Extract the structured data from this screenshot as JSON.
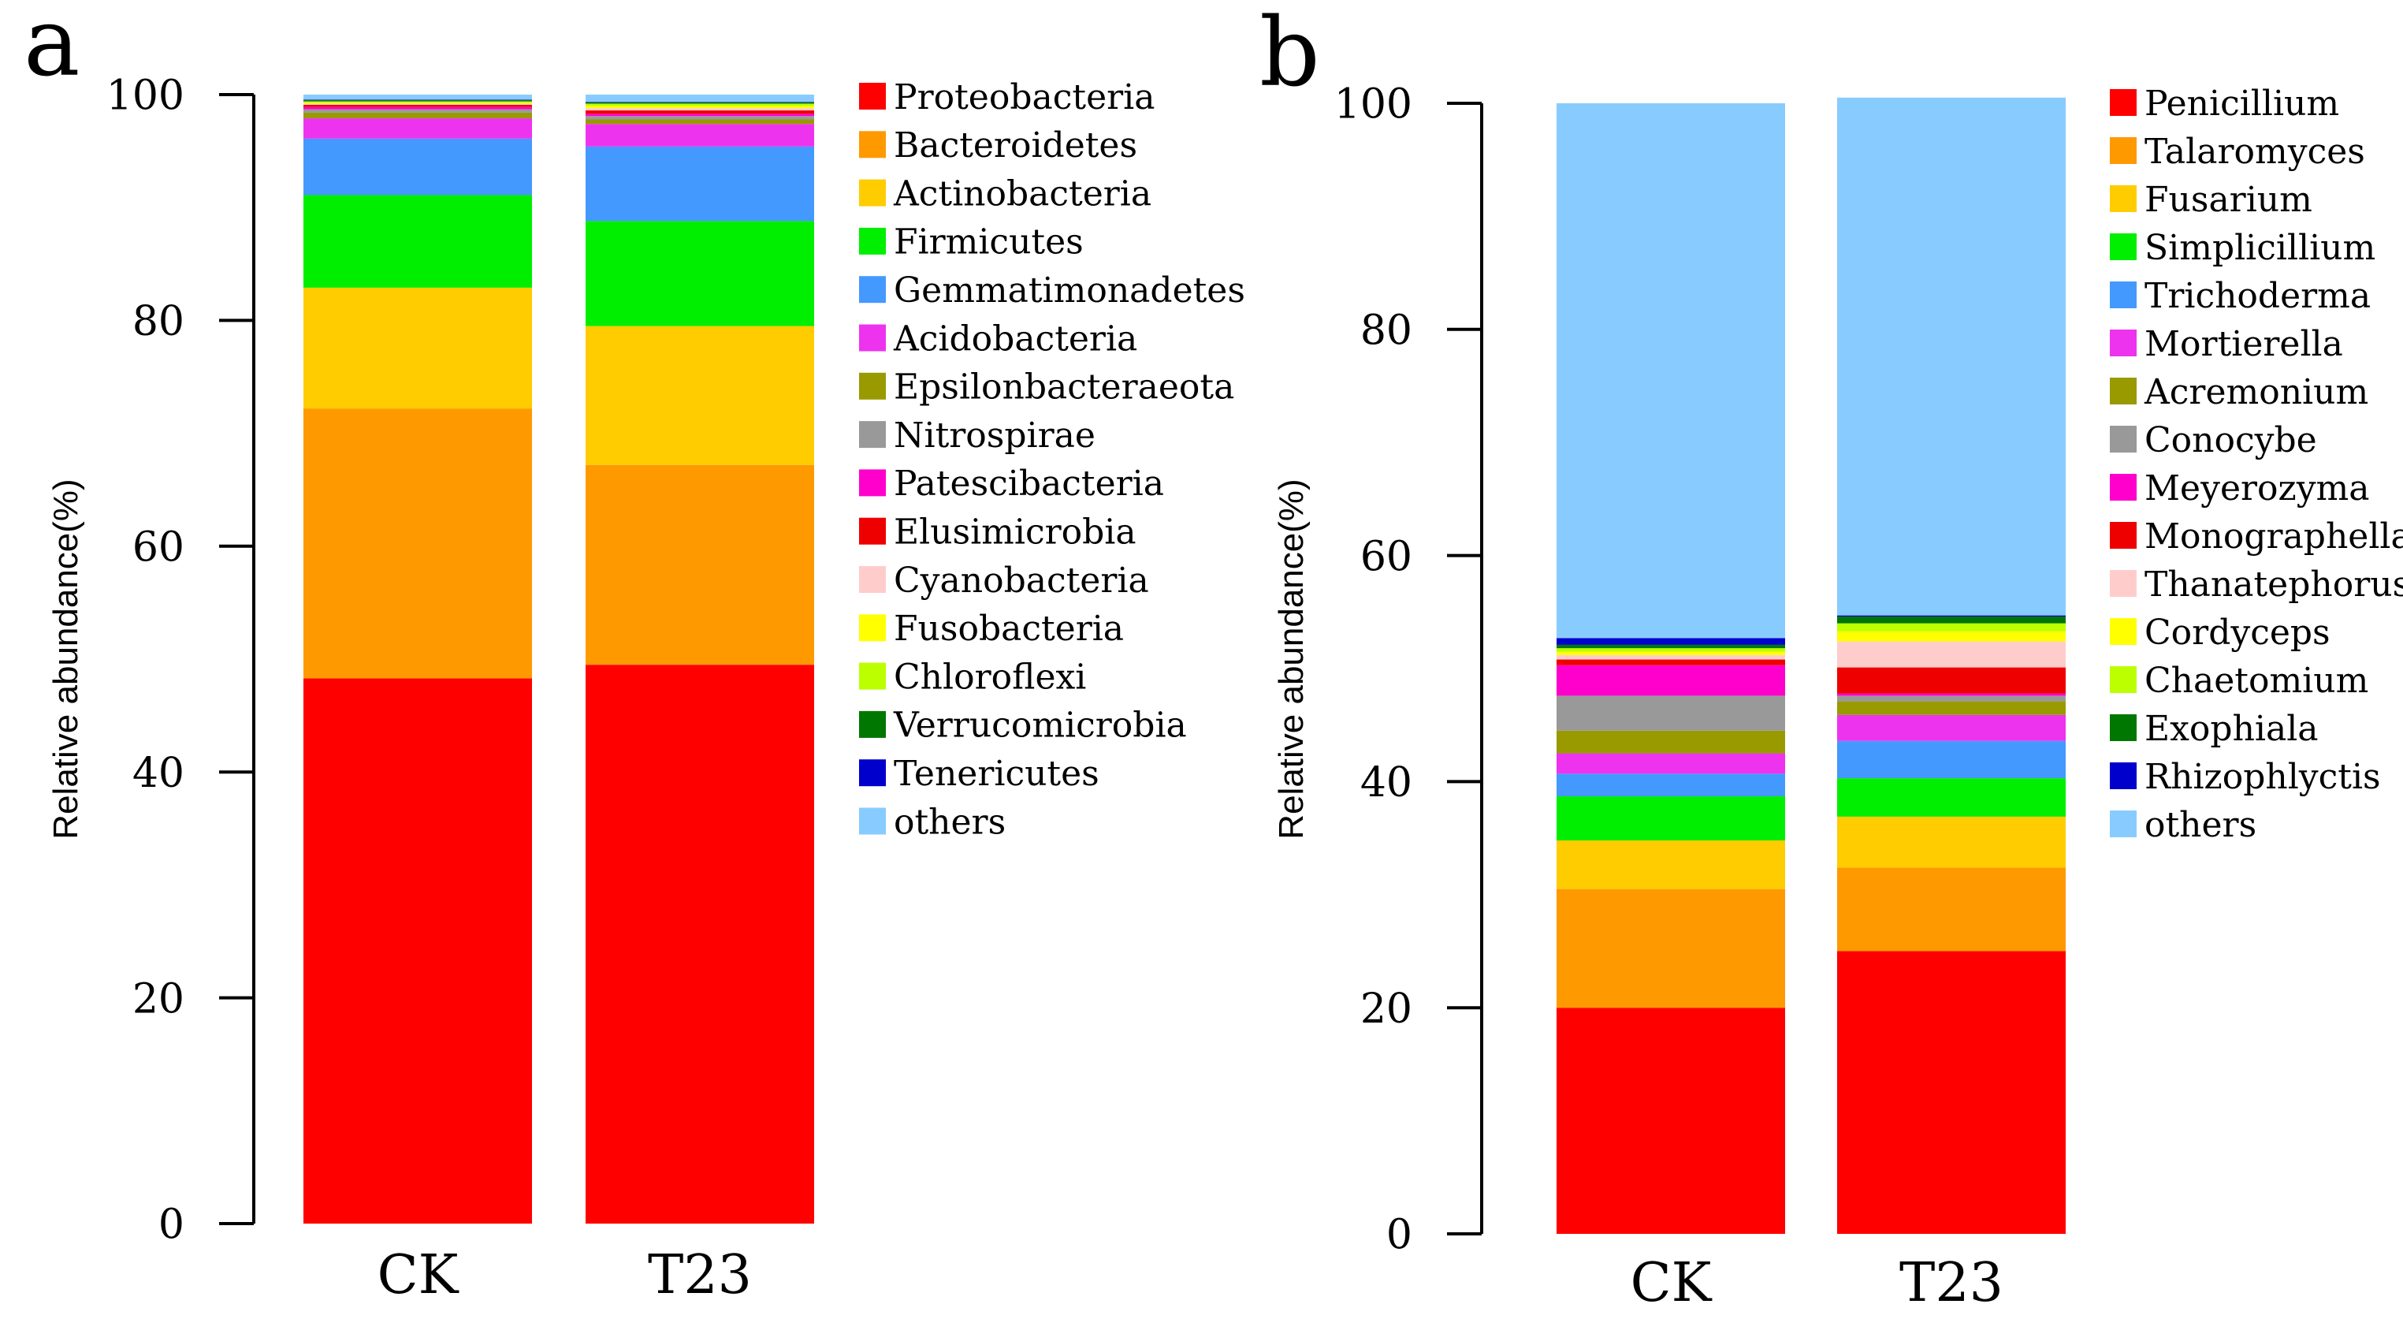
{
  "chart_data": [
    {
      "panel_label": "a",
      "type": "bar",
      "stacked": true,
      "ylabel": "Relative abundance(%)",
      "ylim": [
        0,
        100
      ],
      "yticks": [
        "0",
        "20",
        "40",
        "60",
        "80",
        "100"
      ],
      "categories": [
        "CK",
        "T23"
      ],
      "series": [
        {
          "name": "Proteobacteria",
          "color": "#ff0000",
          "values": [
            48.3,
            49.5
          ]
        },
        {
          "name": "Bacteroidetes",
          "color": "#ff9900",
          "values": [
            23.9,
            17.7
          ]
        },
        {
          "name": "Actinobacteria",
          "color": "#ffcc00",
          "values": [
            10.7,
            12.3
          ]
        },
        {
          "name": "Firmicutes",
          "color": "#00ee00",
          "values": [
            8.2,
            9.3
          ]
        },
        {
          "name": "Gemmatimonadetes",
          "color": "#4499ff",
          "values": [
            5.0,
            6.6
          ]
        },
        {
          "name": "Acidobacteria",
          "color": "#ee33ee",
          "values": [
            1.8,
            2.0
          ]
        },
        {
          "name": "Epsilonbacteraeota",
          "color": "#999900",
          "values": [
            0.5,
            0.4
          ]
        },
        {
          "name": "Nitrospirae",
          "color": "#999999",
          "values": [
            0.3,
            0.3
          ]
        },
        {
          "name": "Patescibacteria",
          "color": "#ff00cc",
          "values": [
            0.2,
            0.2
          ]
        },
        {
          "name": "Elusimicrobia",
          "color": "#ee0000",
          "values": [
            0.2,
            0.3
          ]
        },
        {
          "name": "Cyanobacteria",
          "color": "#ffcccc",
          "values": [
            0.1,
            0.2
          ]
        },
        {
          "name": "Fusobacteria",
          "color": "#ffff00",
          "values": [
            0.1,
            0.2
          ]
        },
        {
          "name": "Chloroflexi",
          "color": "#bbff00",
          "values": [
            0.1,
            0.2
          ]
        },
        {
          "name": "Verrucomicrobia",
          "color": "#007700",
          "values": [
            0.1,
            0.1
          ]
        },
        {
          "name": "Tenericutes",
          "color": "#0000cc",
          "values": [
            0.05,
            0.05
          ]
        },
        {
          "name": "others",
          "color": "#88ccff",
          "values": [
            0.45,
            0.65
          ]
        }
      ]
    },
    {
      "panel_label": "b",
      "type": "bar",
      "stacked": true,
      "ylabel": "Relative abundance(%)",
      "ylim": [
        0,
        100
      ],
      "yticks": [
        "0",
        "20",
        "40",
        "60",
        "80",
        "100"
      ],
      "categories": [
        "CK",
        "T23"
      ],
      "series": [
        {
          "name": "Penicillium",
          "color": "#ff0000",
          "values": [
            20.0,
            25.0
          ]
        },
        {
          "name": "Talaromyces",
          "color": "#ff9900",
          "values": [
            10.5,
            7.4
          ]
        },
        {
          "name": "Fusarium",
          "color": "#ffcc00",
          "values": [
            4.3,
            4.5
          ]
        },
        {
          "name": "Simplicillium",
          "color": "#00ee00",
          "values": [
            3.9,
            3.4
          ]
        },
        {
          "name": "Trichoderma",
          "color": "#4499ff",
          "values": [
            2.0,
            3.3
          ]
        },
        {
          "name": "Mortierella",
          "color": "#ee33ee",
          "values": [
            1.8,
            2.3
          ]
        },
        {
          "name": "Acremonium",
          "color": "#999900",
          "values": [
            2.0,
            1.2
          ]
        },
        {
          "name": "Conocybe",
          "color": "#999999",
          "values": [
            3.1,
            0.5
          ]
        },
        {
          "name": "Meyerozyma",
          "color": "#ff00cc",
          "values": [
            2.7,
            0.2
          ]
        },
        {
          "name": "Monographella",
          "color": "#ee0000",
          "values": [
            0.5,
            2.3
          ]
        },
        {
          "name": "Thanatephorus",
          "color": "#ffcccc",
          "values": [
            0.4,
            2.3
          ]
        },
        {
          "name": "Cordyceps",
          "color": "#ffff00",
          "values": [
            0.3,
            0.9
          ]
        },
        {
          "name": "Chaetomium",
          "color": "#bbff00",
          "values": [
            0.3,
            0.7
          ]
        },
        {
          "name": "Exophiala",
          "color": "#007700",
          "values": [
            0.3,
            0.6
          ]
        },
        {
          "name": "Rhizophlyctis",
          "color": "#0000cc",
          "values": [
            0.6,
            0.1
          ]
        },
        {
          "name": "others",
          "color": "#88ccff",
          "values": [
            47.3,
            45.8
          ]
        }
      ]
    }
  ]
}
